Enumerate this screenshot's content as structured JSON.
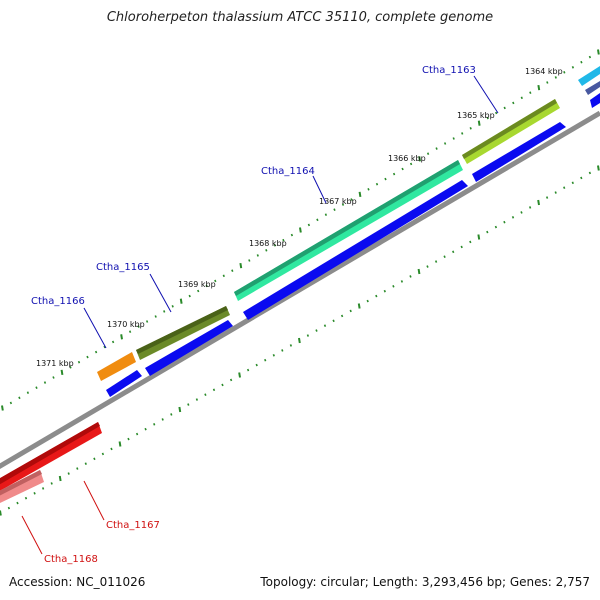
{
  "title": "Chloroherpeton thalassium ATCC 35110, complete genome",
  "accession": "Accession: NC_011026",
  "summary": "Topology: circular; Length: 3,293,456 bp; Genes: 2,757",
  "colors": {
    "backbone": "#8c8c8c",
    "tick": "#2a8a2a",
    "cds_reverse": "#0a0af0",
    "label_fwd": "#1010b0",
    "label_rev": "#d01010"
  },
  "kbp_ticks": [
    "1364 kbp",
    "1365 kbp",
    "1366 kbp",
    "1367 kbp",
    "1368 kbp",
    "1369 kbp",
    "1370 kbp",
    "1371 kbp"
  ],
  "genes": [
    {
      "label": "Ctha_1163",
      "strand": "forward",
      "color": "#a8d830"
    },
    {
      "label": "Ctha_1164",
      "strand": "forward",
      "color": "#30e8a0"
    },
    {
      "label": "Ctha_1165",
      "strand": "forward",
      "color": "#6b8a28"
    },
    {
      "label": "Ctha_1166",
      "strand": "forward",
      "color": "#f08c10"
    },
    {
      "label": "Ctha_1167",
      "strand": "reverse",
      "color": "#e81818"
    },
    {
      "label": "Ctha_1168",
      "strand": "reverse",
      "color": "#f08a8a"
    }
  ]
}
